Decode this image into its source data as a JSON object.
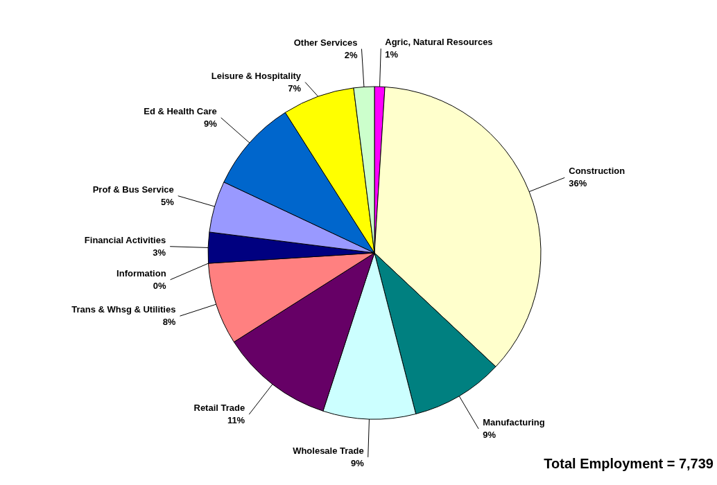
{
  "chart_data": {
    "type": "pie",
    "categories": [
      "Agric, Natural Resources",
      "Construction",
      "Manufacturing",
      "Wholesale Trade",
      "Retail Trade",
      "Trans & Whsg & Utilities",
      "Information",
      "Financial Activities",
      "Prof & Bus Service",
      "Ed & Health Care",
      "Leisure & Hospitality",
      "Other Services"
    ],
    "values": [
      1,
      36,
      9,
      9,
      11,
      8,
      0,
      3,
      5,
      9,
      7,
      2
    ],
    "colors": [
      "#ff00ff",
      "#ffffcc",
      "#008080",
      "#ccffff",
      "#660066",
      "#ff8080",
      "#0066cc",
      "#000080",
      "#9999ff",
      "#0066cc",
      "#ffff00",
      "#ccffcc"
    ],
    "value_labels": [
      "1%",
      "36%",
      "9%",
      "9%",
      "11%",
      "8%",
      "0%",
      "3%",
      "5%",
      "9%",
      "7%",
      "2%"
    ],
    "annotations": [
      "Total Employment = 7,739"
    ]
  }
}
